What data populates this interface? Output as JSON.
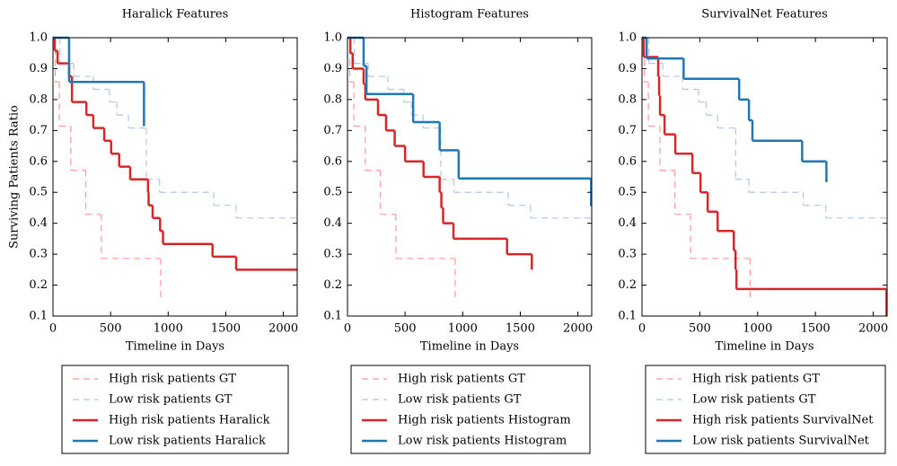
{
  "chart_data": [
    {
      "type": "step",
      "title": "Haralick Features",
      "xlabel": "Timeline in Days",
      "ylabel": "Surviving Patients Ratio",
      "xlim": [
        0,
        2120
      ],
      "ylim": [
        0.1,
        1
      ],
      "xticks": [
        0,
        500,
        1000,
        1500,
        2000
      ],
      "yticks": [
        0.1,
        0.2,
        0.3,
        0.4,
        0.5,
        0.6,
        0.7,
        0.8,
        0.9,
        {
          "value": 1,
          "label": "1.0"
        }
      ],
      "grid": false,
      "legend": "below",
      "series": [
        {
          "name": "High risk patients GT",
          "color": "#ff9896",
          "linestyle": "dashed",
          "x": [
            0,
            20,
            55,
            155,
            285,
            420,
            935
          ],
          "values": [
            1,
            0.857,
            0.714,
            0.571,
            0.429,
            0.286,
            0.16
          ]
        },
        {
          "name": "Low risk patients GT",
          "color": "#aec7e8",
          "linestyle": "dashed",
          "x": [
            0,
            60,
            180,
            350,
            490,
            555,
            655,
            810,
            925,
            1395,
            1590,
            2120
          ],
          "values": [
            1,
            0.917,
            0.875,
            0.833,
            0.792,
            0.75,
            0.708,
            0.542,
            0.5,
            0.458,
            0.417,
            0.417
          ]
        },
        {
          "name": "High risk patients Haralick",
          "color": "#d62728",
          "linestyle": "solid",
          "x": [
            0,
            15,
            40,
            140,
            165,
            290,
            350,
            445,
            505,
            575,
            670,
            825,
            830,
            865,
            930,
            955,
            1385,
            1590,
            2120
          ],
          "values": [
            1,
            0.958,
            0.917,
            0.875,
            0.792,
            0.75,
            0.708,
            0.667,
            0.625,
            0.583,
            0.542,
            0.5,
            0.458,
            0.417,
            0.375,
            0.333,
            0.292,
            0.25,
            0.25
          ]
        },
        {
          "name": "Low risk patients Haralick",
          "color": "#1f77b4",
          "linestyle": "solid",
          "x": [
            0,
            140,
            790
          ],
          "values": [
            1,
            0.857,
            0.714
          ]
        }
      ]
    },
    {
      "type": "step",
      "title": "Histogram Features",
      "xlabel": "Timeline in Days",
      "xlim": [
        0,
        2120
      ],
      "ylim": [
        0.1,
        1
      ],
      "xticks": [
        0,
        500,
        1000,
        1500,
        2000
      ],
      "yticks": [
        0.1,
        0.2,
        0.3,
        0.4,
        0.5,
        0.6,
        0.7,
        0.8,
        0.9,
        {
          "value": 1,
          "label": "1.0"
        }
      ],
      "grid": false,
      "legend": "below",
      "series": [
        {
          "name": "High risk patients GT",
          "color": "#ff9896",
          "linestyle": "dashed",
          "x": [
            0,
            20,
            55,
            155,
            285,
            420,
            935
          ],
          "values": [
            1,
            0.857,
            0.714,
            0.571,
            0.429,
            0.286,
            0.16
          ]
        },
        {
          "name": "Low risk patients GT",
          "color": "#aec7e8",
          "linestyle": "dashed",
          "x": [
            0,
            60,
            180,
            350,
            490,
            555,
            655,
            810,
            925,
            1395,
            1590,
            2120
          ],
          "values": [
            1,
            0.917,
            0.875,
            0.833,
            0.792,
            0.75,
            0.708,
            0.542,
            0.5,
            0.458,
            0.417,
            0.417
          ]
        },
        {
          "name": "High risk patients Histogram",
          "color": "#d62728",
          "linestyle": "solid",
          "x": [
            0,
            25,
            45,
            140,
            155,
            265,
            335,
            410,
            500,
            660,
            800,
            815,
            830,
            920,
            1385,
            1600
          ],
          "values": [
            1,
            0.95,
            0.9,
            0.85,
            0.8,
            0.75,
            0.7,
            0.65,
            0.6,
            0.55,
            0.5,
            0.45,
            0.4,
            0.35,
            0.3,
            0.25
          ]
        },
        {
          "name": "Low risk patients Histogram",
          "color": "#1f77b4",
          "linestyle": "solid",
          "x": [
            0,
            140,
            165,
            570,
            800,
            965,
            2115
          ],
          "values": [
            1,
            0.909,
            0.818,
            0.727,
            0.636,
            0.545,
            0.455
          ]
        }
      ]
    },
    {
      "type": "step",
      "title": "SurvivalNet Features",
      "xlabel": "Timeline in Days",
      "xlim": [
        0,
        2120
      ],
      "ylim": [
        0.1,
        1
      ],
      "xticks": [
        0,
        500,
        1000,
        1500,
        2000
      ],
      "yticks": [
        0.1,
        0.2,
        0.3,
        0.4,
        0.5,
        0.6,
        0.7,
        0.8,
        0.9,
        {
          "value": 1,
          "label": "1.0"
        }
      ],
      "grid": false,
      "legend": "below",
      "series": [
        {
          "name": "High risk patients GT",
          "color": "#ff9896",
          "linestyle": "dashed",
          "x": [
            0,
            20,
            55,
            155,
            285,
            420,
            935
          ],
          "values": [
            1,
            0.857,
            0.714,
            0.571,
            0.429,
            0.286,
            0.16
          ]
        },
        {
          "name": "Low risk patients GT",
          "color": "#aec7e8",
          "linestyle": "dashed",
          "x": [
            0,
            60,
            180,
            350,
            490,
            555,
            655,
            810,
            925,
            1395,
            1590,
            2120
          ],
          "values": [
            1,
            0.917,
            0.875,
            0.833,
            0.792,
            0.75,
            0.708,
            0.542,
            0.5,
            0.458,
            0.417,
            0.417
          ]
        },
        {
          "name": "High risk patients SurvivalNet",
          "color": "#d62728",
          "linestyle": "solid",
          "x": [
            0,
            15,
            140,
            148,
            156,
            195,
            288,
            436,
            506,
            568,
            654,
            794,
            809,
            817,
            2115
          ],
          "values": [
            1,
            0.9375,
            0.875,
            0.8125,
            0.75,
            0.6875,
            0.625,
            0.5625,
            0.5,
            0.4375,
            0.375,
            0.3125,
            0.25,
            0.1875,
            0.1
          ]
        },
        {
          "name": "Low risk patients SurvivalNet",
          "color": "#1f77b4",
          "linestyle": "solid",
          "x": [
            0,
            40,
            360,
            840,
            925,
            955,
            1385,
            1595
          ],
          "values": [
            1,
            0.933,
            0.867,
            0.8,
            0.733,
            0.667,
            0.6,
            0.533
          ]
        }
      ]
    }
  ]
}
